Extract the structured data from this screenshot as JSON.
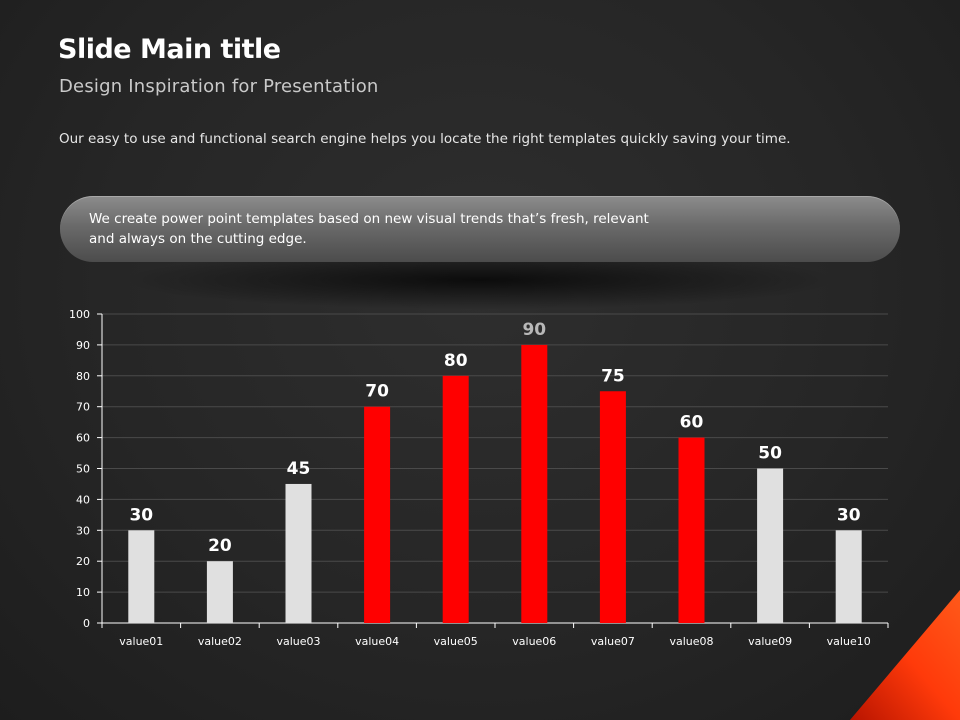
{
  "slide": {
    "title": "Slide Main title",
    "subtitle": "Design Inspiration for Presentation",
    "description": "Our easy to use and functional search engine helps you locate the right templates quickly saving your time.",
    "banner_text": "We create power point templates based on new visual trends that’s fresh, relevant and always on the cutting edge."
  },
  "colors": {
    "red_bar": "#ff0000",
    "light_bar": "#e0e0e0",
    "accent": "#ff3a0a"
  },
  "chart_data": {
    "type": "bar",
    "categories": [
      "value01",
      "value02",
      "value03",
      "value04",
      "value05",
      "value06",
      "value07",
      "value08",
      "value09",
      "value10"
    ],
    "values": [
      30,
      20,
      45,
      70,
      80,
      90,
      75,
      60,
      50,
      30
    ],
    "bar_colors": [
      "#e0e0e0",
      "#e0e0e0",
      "#e0e0e0",
      "#ff0000",
      "#ff0000",
      "#ff0000",
      "#ff0000",
      "#ff0000",
      "#e0e0e0",
      "#e0e0e0"
    ],
    "label_colors": [
      "#ffffff",
      "#ffffff",
      "#ffffff",
      "#ffffff",
      "#ffffff",
      "#b8b8b8",
      "#ffffff",
      "#ffffff",
      "#ffffff",
      "#ffffff"
    ],
    "ylim": [
      0,
      100
    ],
    "yticks": [
      0,
      10,
      20,
      30,
      40,
      50,
      60,
      70,
      80,
      90,
      100
    ],
    "grid": true,
    "data_labels": true,
    "title": "",
    "xlabel": "",
    "ylabel": ""
  }
}
